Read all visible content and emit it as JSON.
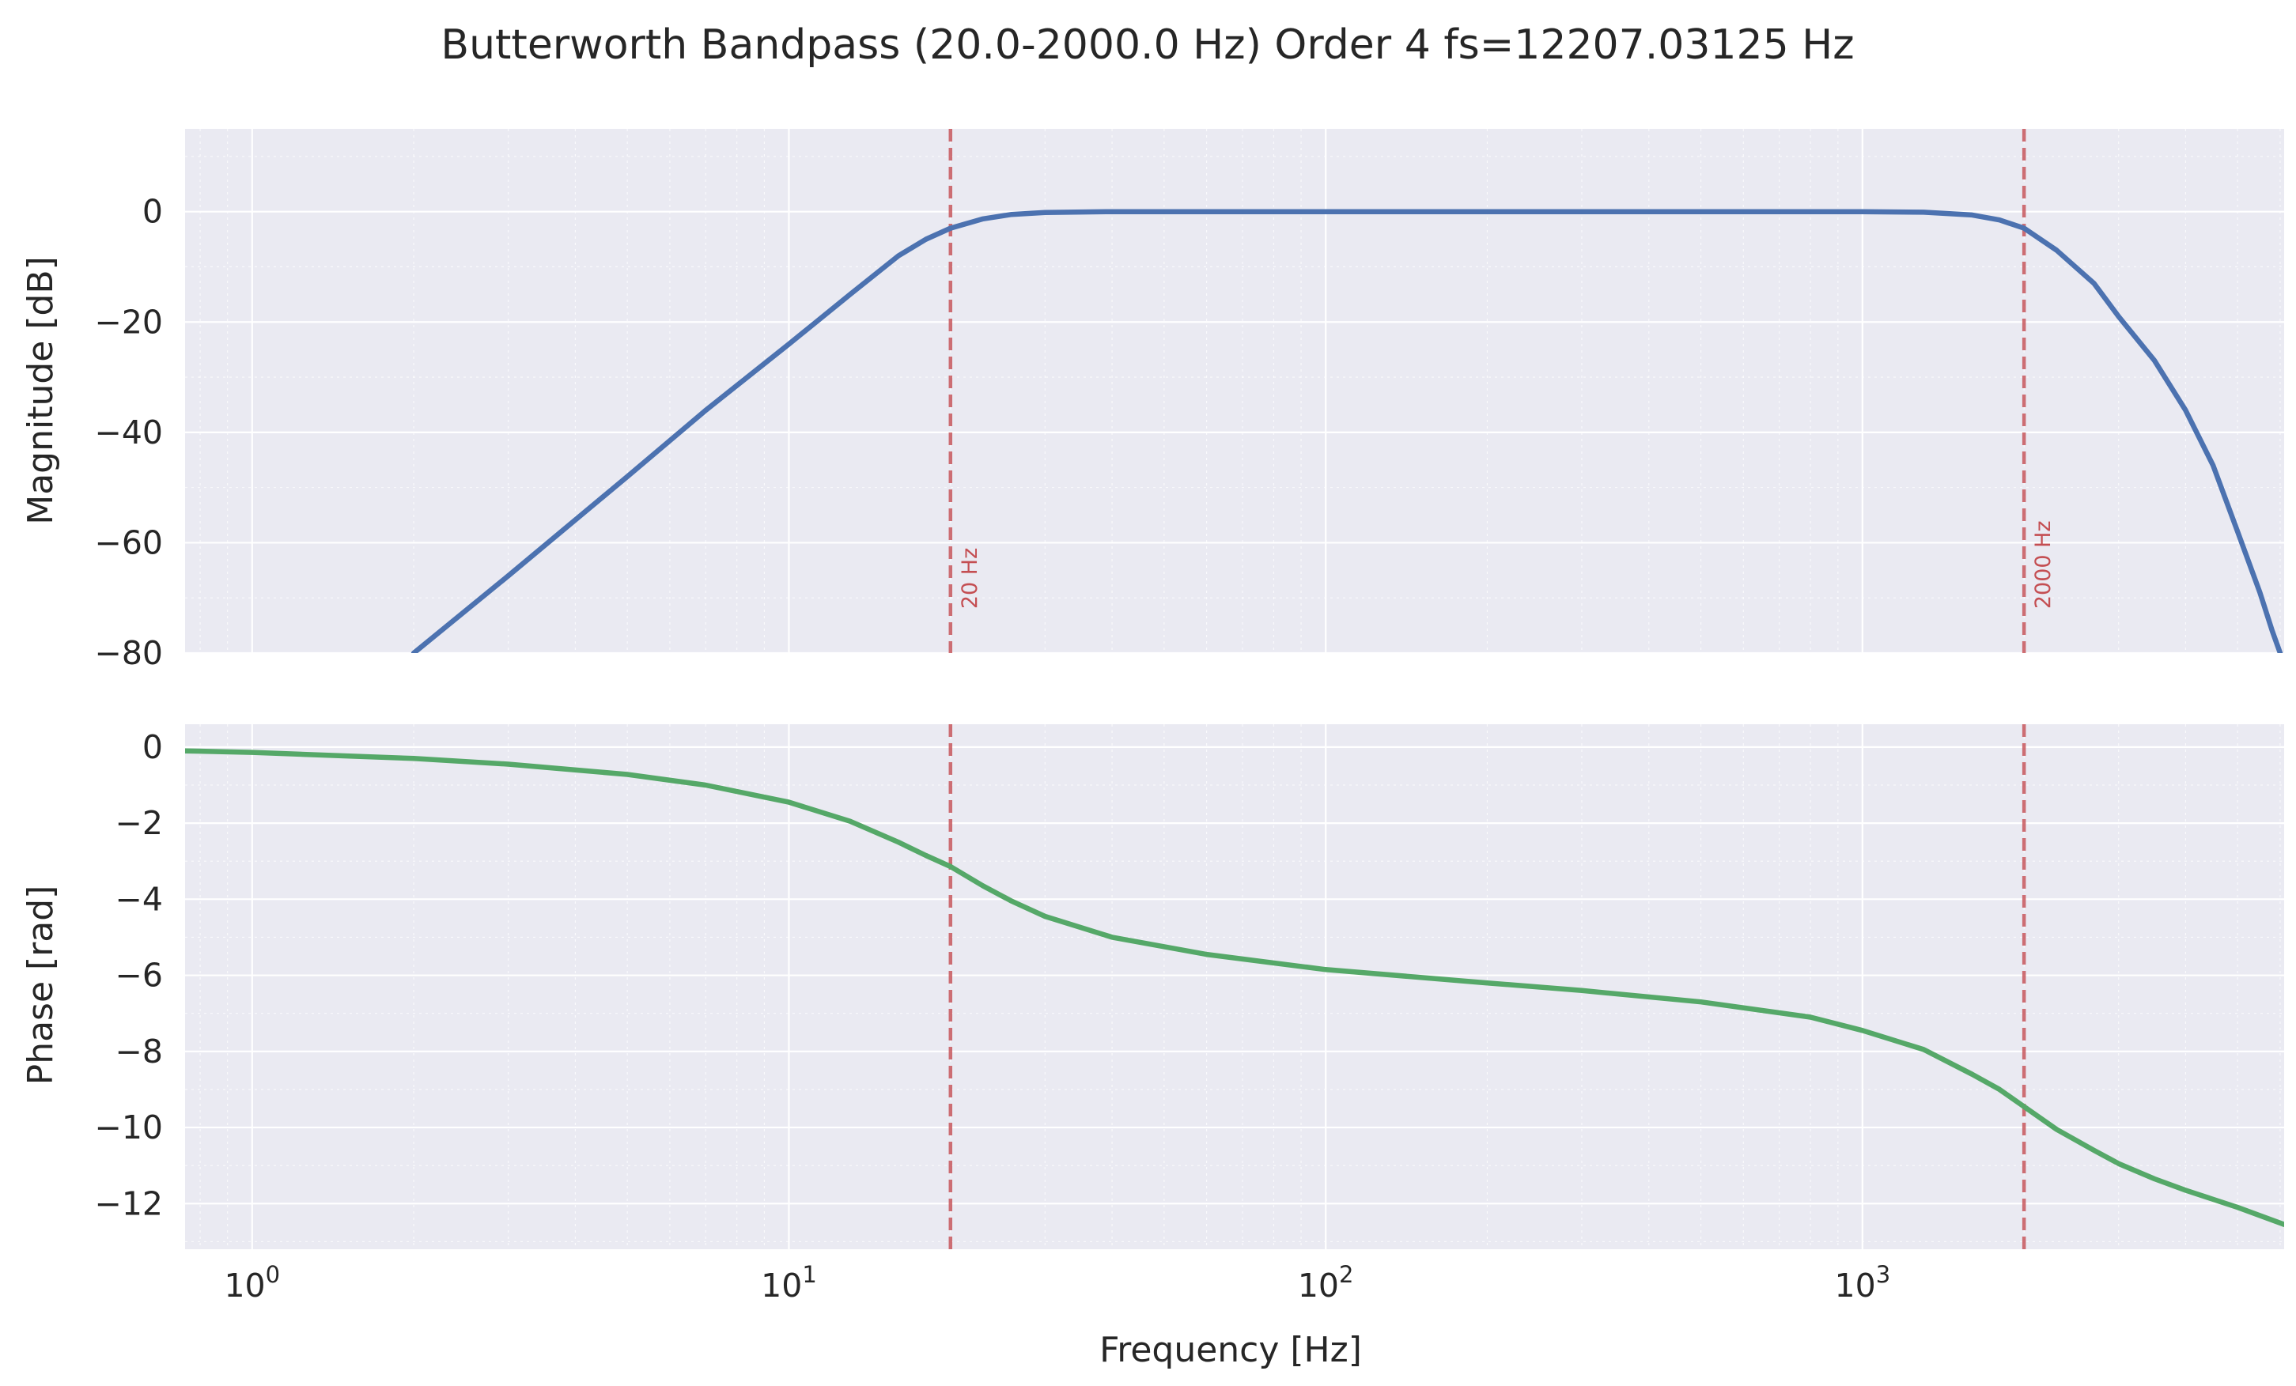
{
  "chart_data": {
    "type": "line",
    "title": "Butterworth Bandpass (20.0-2000.0 Hz) Order 4 fs=12207.03125 Hz",
    "xlabel": "Frequency [Hz]",
    "xscale": "log",
    "xlim": [
      0.75,
      6103.5
    ],
    "x_ticks": [
      {
        "value": 1,
        "label": "10",
        "exp": "0"
      },
      {
        "value": 10,
        "label": "10",
        "exp": "1"
      },
      {
        "value": 100,
        "label": "10",
        "exp": "2"
      },
      {
        "value": 1000,
        "label": "10",
        "exp": "3"
      }
    ],
    "grid": true,
    "cutoffs": [
      {
        "freq": 20,
        "label": "20 Hz"
      },
      {
        "freq": 2000,
        "label": "2000 Hz"
      }
    ],
    "colors": {
      "magnitude": "#4c72b0",
      "phase": "#55a868",
      "cutoff": "#c44e52"
    },
    "panels": [
      {
        "name": "magnitude",
        "ylabel": "Magnitude [dB]",
        "ylim": [
          -80,
          15
        ],
        "yticks": [
          0,
          -20,
          -40,
          -60,
          -80
        ],
        "series": [
          {
            "x": [
              2,
              3,
              5,
              7,
              10,
              13,
              16,
              18,
              20,
              23,
              26,
              30,
              40,
              60,
              100,
              200,
              500,
              800,
              1000,
              1300,
              1600,
              1800,
              2000,
              2300,
              2700,
              3000,
              3500,
              4000,
              4500,
              5000,
              5500,
              5800,
              6000
            ],
            "y": [
              -80,
              -66,
              -48,
              -36,
              -24,
              -15,
              -8,
              -5,
              -3,
              -1.3,
              -0.5,
              -0.15,
              0,
              0,
              0,
              0,
              0,
              0,
              0,
              -0.1,
              -0.6,
              -1.5,
              -3,
              -7,
              -13,
              -19,
              -27,
              -36,
              -46,
              -58,
              -69,
              -76,
              -80
            ]
          }
        ]
      },
      {
        "name": "phase",
        "ylabel": "Phase [rad]",
        "ylim": [
          -13.2,
          0.6
        ],
        "yticks": [
          0,
          -2,
          -4,
          -6,
          -8,
          -10,
          -12
        ],
        "series": [
          {
            "x": [
              0.75,
              1,
              2,
              3,
              5,
              7,
              10,
              13,
              16,
              18,
              20,
              23,
              26,
              30,
              40,
              60,
              100,
              200,
              300,
              500,
              800,
              1000,
              1300,
              1600,
              1800,
              2000,
              2300,
              2700,
              3000,
              3500,
              4000,
              5000,
              6103.5
            ],
            "y": [
              -0.1,
              -0.14,
              -0.3,
              -0.45,
              -0.72,
              -1.0,
              -1.45,
              -1.95,
              -2.5,
              -2.85,
              -3.14,
              -3.65,
              -4.05,
              -4.45,
              -5.0,
              -5.45,
              -5.85,
              -6.2,
              -6.4,
              -6.7,
              -7.1,
              -7.45,
              -7.95,
              -8.6,
              -9.0,
              -9.45,
              -10.05,
              -10.6,
              -10.95,
              -11.35,
              -11.65,
              -12.1,
              -12.55
            ]
          }
        ]
      }
    ]
  }
}
